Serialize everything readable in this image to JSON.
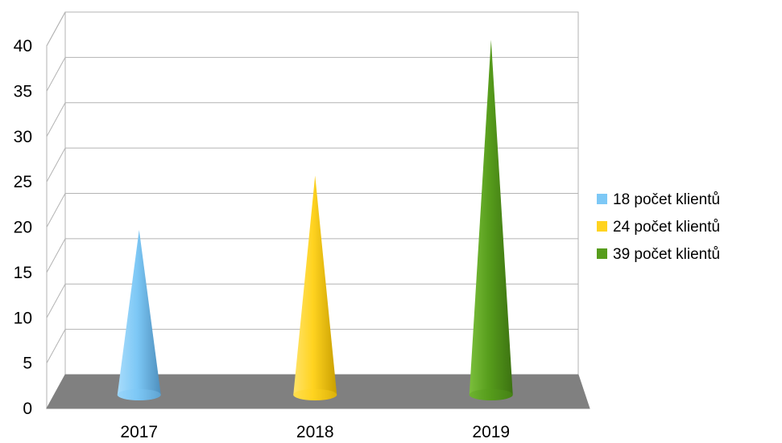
{
  "chart_data": {
    "type": "bar",
    "title": "",
    "xlabel": "",
    "ylabel": "",
    "categories": [
      "2017",
      "2018",
      "2019"
    ],
    "values": [
      18,
      24,
      39
    ],
    "colors": [
      "#7dc8f6",
      "#ffd320",
      "#579d1c"
    ],
    "ylim": [
      0,
      40
    ],
    "yticks": [
      0,
      5,
      10,
      15,
      20,
      25,
      30,
      35,
      40
    ],
    "grid": true,
    "style": "3d-cone",
    "legend": {
      "placement": "right",
      "entries": [
        "18 počet klientů",
        "24 počet klientů",
        "39 počet klientů"
      ]
    }
  }
}
